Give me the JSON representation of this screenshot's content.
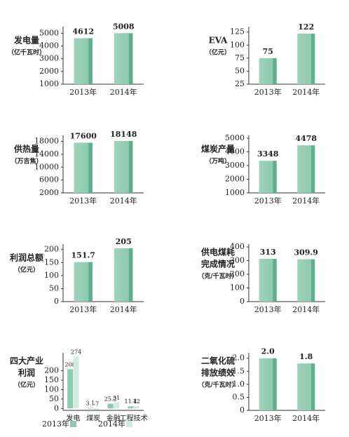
{
  "chart_data": [
    {
      "type": "bar",
      "title": [
        "发电量"
      ],
      "unit": "（亿千瓦时）",
      "categories": [
        "2013年",
        "2014年"
      ],
      "values": [
        4612,
        5008
      ],
      "color": "#8ecab0",
      "ylim": [
        1000,
        5300
      ],
      "yticks": [
        1000,
        2000,
        3000,
        4000,
        5000
      ]
    },
    {
      "type": "bar",
      "title": [
        "EVA"
      ],
      "unit": "（亿元）",
      "categories": [
        "2013年",
        "2014年"
      ],
      "values": [
        75,
        122
      ],
      "color": "#8ecab0",
      "ylim": [
        25,
        130
      ],
      "yticks": [
        25,
        50,
        75,
        100,
        125
      ]
    },
    {
      "type": "bar",
      "title": [
        "供热量"
      ],
      "unit": "（万吉焦）",
      "categories": [
        "2013年",
        "2014年"
      ],
      "values": [
        17600,
        18148
      ],
      "color": "#8ecab0",
      "ylim": [
        2000,
        19000
      ],
      "yticks": [
        2000,
        6000,
        10000,
        14000,
        18000
      ]
    },
    {
      "type": "bar",
      "title": [
        "煤炭产量"
      ],
      "unit": "（万吨）",
      "categories": [
        "2013年",
        "2014年"
      ],
      "values": [
        3348,
        4478
      ],
      "color": "#8ecab0",
      "ylim": [
        1000,
        5000
      ],
      "yticks": [
        1000,
        2000,
        3000,
        4000,
        5000
      ]
    },
    {
      "type": "bar",
      "title": [
        "利润总额"
      ],
      "unit": "（亿元）",
      "categories": [
        "2013年",
        "2014年"
      ],
      "values": [
        151.7,
        205
      ],
      "color": "#8ecab0",
      "ylim": [
        0,
        210
      ],
      "yticks": [
        0,
        50,
        100,
        150,
        200
      ]
    },
    {
      "type": "bar",
      "title": [
        "供电煤耗",
        "完成情况"
      ],
      "unit": "（克/千瓦时）",
      "categories": [
        "2013年",
        "2014年"
      ],
      "values": [
        313,
        309.9
      ],
      "color": "#8ecab0",
      "ylim": [
        0,
        400
      ],
      "yticks": [
        0,
        100,
        200,
        300,
        400
      ]
    },
    {
      "type": "grouped_bar",
      "title": [
        "四大产业",
        "利润"
      ],
      "unit": "（亿元）",
      "categories": [
        "发电",
        "煤炭",
        "金融",
        "工程技术"
      ],
      "series": [
        {
          "name": "2013年",
          "color": "#8ecab0",
          "values": [
            208,
            3.1,
            25.2,
            11.4
          ]
        },
        {
          "name": "2014年",
          "color": "#d3ebde",
          "values": [
            274,
            -7,
            31,
            12
          ]
        }
      ],
      "ylim": [
        -10,
        280
      ],
      "yticks": [
        0,
        50,
        100,
        150,
        200
      ]
    },
    {
      "type": "bar",
      "title": [
        "二氧化硫",
        "排放绩效"
      ],
      "unit": "（克/千瓦时）",
      "categories": [
        "2013年",
        "2014年"
      ],
      "values": [
        2.0,
        1.8
      ],
      "value_labels": [
        "2.0",
        "1.8"
      ],
      "color": "#8ecab0",
      "ylim": [
        0,
        2.1
      ],
      "yticks": [
        0,
        0.5,
        {
          "value": 1,
          "label": "1.0"
        },
        1.5,
        {
          "value": 2,
          "label": "2.0"
        }
      ]
    }
  ]
}
